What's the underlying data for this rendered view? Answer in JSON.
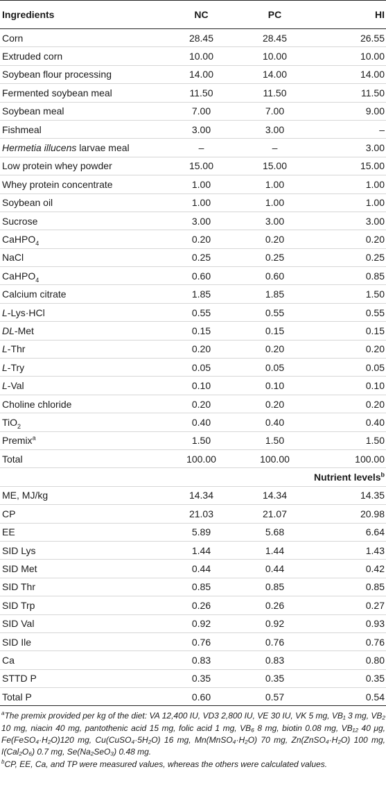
{
  "table": {
    "headers": [
      "Ingredients",
      "NC",
      "PC",
      "HI"
    ],
    "rows": [
      {
        "pre": "",
        "it": "",
        "label": "Corn",
        "sub": "",
        "sup": "",
        "nc": "28.45",
        "pc": "28.45",
        "hi": "26.55"
      },
      {
        "pre": "",
        "it": "",
        "label": "Extruded corn",
        "sub": "",
        "sup": "",
        "nc": "10.00",
        "pc": "10.00",
        "hi": "10.00"
      },
      {
        "pre": "",
        "it": "",
        "label": "Soybean flour processing",
        "sub": "",
        "sup": "",
        "nc": "14.00",
        "pc": "14.00",
        "hi": "14.00"
      },
      {
        "pre": "",
        "it": "",
        "label": "Fermented soybean meal",
        "sub": "",
        "sup": "",
        "nc": "11.50",
        "pc": "11.50",
        "hi": "11.50"
      },
      {
        "pre": "",
        "it": "",
        "label": "Soybean meal",
        "sub": "",
        "sup": "",
        "nc": "7.00",
        "pc": "7.00",
        "hi": "9.00"
      },
      {
        "pre": "",
        "it": "",
        "label": "Fishmeal",
        "sub": "",
        "sup": "",
        "nc": "3.00",
        "pc": "3.00",
        "hi": "–"
      },
      {
        "pre": "",
        "it": "Hermetia illucens",
        "label": " larvae meal",
        "sub": "",
        "sup": "",
        "nc": "–",
        "pc": "–",
        "hi": "3.00"
      },
      {
        "pre": "",
        "it": "",
        "label": "Low protein whey powder",
        "sub": "",
        "sup": "",
        "nc": "15.00",
        "pc": "15.00",
        "hi": "15.00"
      },
      {
        "pre": "",
        "it": "",
        "label": "Whey protein concentrate",
        "sub": "",
        "sup": "",
        "nc": "1.00",
        "pc": "1.00",
        "hi": "1.00"
      },
      {
        "pre": "",
        "it": "",
        "label": "Soybean oil",
        "sub": "",
        "sup": "",
        "nc": "1.00",
        "pc": "1.00",
        "hi": "1.00"
      },
      {
        "pre": "",
        "it": "",
        "label": "Sucrose",
        "sub": "",
        "sup": "",
        "nc": "3.00",
        "pc": "3.00",
        "hi": "3.00"
      },
      {
        "pre": "",
        "it": "",
        "label": "CaHPO",
        "sub": "4",
        "sup": "",
        "nc": "0.20",
        "pc": "0.20",
        "hi": "0.20"
      },
      {
        "pre": "",
        "it": "",
        "label": "NaCl",
        "sub": "",
        "sup": "",
        "nc": "0.25",
        "pc": "0.25",
        "hi": "0.25"
      },
      {
        "pre": "",
        "it": "",
        "label": "CaHPO",
        "sub": "4",
        "sup": "",
        "nc": "0.60",
        "pc": "0.60",
        "hi": "0.85"
      },
      {
        "pre": "",
        "it": "",
        "label": "Calcium citrate",
        "sub": "",
        "sup": "",
        "nc": "1.85",
        "pc": "1.85",
        "hi": "1.50"
      },
      {
        "pre": "",
        "it": "L",
        "label": "-Lys·HCl",
        "sub": "",
        "sup": "",
        "nc": "0.55",
        "pc": "0.55",
        "hi": "0.55"
      },
      {
        "pre": "",
        "it": "DL",
        "label": "-Met",
        "sub": "",
        "sup": "",
        "nc": "0.15",
        "pc": "0.15",
        "hi": "0.15"
      },
      {
        "pre": "",
        "it": "L",
        "label": "-Thr",
        "sub": "",
        "sup": "",
        "nc": "0.20",
        "pc": "0.20",
        "hi": "0.20"
      },
      {
        "pre": "",
        "it": "L",
        "label": "-Try",
        "sub": "",
        "sup": "",
        "nc": "0.05",
        "pc": "0.05",
        "hi": "0.05"
      },
      {
        "pre": "",
        "it": "L",
        "label": "-Val",
        "sub": "",
        "sup": "",
        "nc": "0.10",
        "pc": "0.10",
        "hi": "0.10"
      },
      {
        "pre": "",
        "it": "",
        "label": "Choline chloride",
        "sub": "",
        "sup": "",
        "nc": "0.20",
        "pc": "0.20",
        "hi": "0.20"
      },
      {
        "pre": "",
        "it": "",
        "label": "TiO",
        "sub": "2",
        "sup": "",
        "nc": "0.40",
        "pc": "0.40",
        "hi": "0.40"
      },
      {
        "pre": "",
        "it": "",
        "label": "Premix",
        "sub": "",
        "sup": "a",
        "nc": "1.50",
        "pc": "1.50",
        "hi": "1.50"
      },
      {
        "pre": "",
        "it": "",
        "label": "Total",
        "sub": "",
        "sup": "",
        "nc": "100.00",
        "pc": "100.00",
        "hi": "100.00"
      }
    ],
    "section": {
      "label": "Nutrient levels",
      "sup": "b"
    },
    "nutrients": [
      {
        "label": "ME, MJ/kg",
        "nc": "14.34",
        "pc": "14.34",
        "hi": "14.35"
      },
      {
        "label": "CP",
        "nc": "21.03",
        "pc": "21.07",
        "hi": "20.98"
      },
      {
        "label": "EE",
        "nc": "5.89",
        "pc": "5.68",
        "hi": "6.64"
      },
      {
        "label": "SID Lys",
        "nc": "1.44",
        "pc": "1.44",
        "hi": "1.43"
      },
      {
        "label": "SID Met",
        "nc": "0.44",
        "pc": "0.44",
        "hi": "0.42"
      },
      {
        "label": "SID Thr",
        "nc": "0.85",
        "pc": "0.85",
        "hi": "0.85"
      },
      {
        "label": "SID Trp",
        "nc": "0.26",
        "pc": "0.26",
        "hi": "0.27"
      },
      {
        "label": "SID Val",
        "nc": "0.92",
        "pc": "0.92",
        "hi": "0.93"
      },
      {
        "label": "SID Ile",
        "nc": "0.76",
        "pc": "0.76",
        "hi": "0.76"
      },
      {
        "label": "Ca",
        "nc": "0.83",
        "pc": "0.83",
        "hi": "0.80"
      },
      {
        "label": "STTD P",
        "nc": "0.35",
        "pc": "0.35",
        "hi": "0.35"
      },
      {
        "label": "Total P",
        "nc": "0.60",
        "pc": "0.57",
        "hi": "0.54"
      }
    ]
  },
  "footnotes": {
    "a_mark": "a",
    "a_text": "The premix provided per kg of the diet: VA 12,400 IU, VD3 2,800 IU, VE 30 IU, VK 5 mg, VB₁ 3 mg, VB₂ 10 mg, niacin 40 mg, pantothenic acid 15 mg, folic acid 1 mg, VB₆ 8 mg, biotin 0.08 mg, VB₁₂ 40 μg, Fe(FeSO₄·H₂O)120 mg, Cu(CuSO₄·5H₂O) 16 mg, Mn(MnSO₄·H₂O) 70 mg, Zn(ZnSO₄·H₂O) 100 mg, I(Cal₂O₆) 0.7 mg, Se(Na₂SeO₃) 0.48 mg.",
    "b_mark": "b",
    "b_text": "CP, EE, Ca, and TP were measured values, whereas the others were calculated values."
  }
}
